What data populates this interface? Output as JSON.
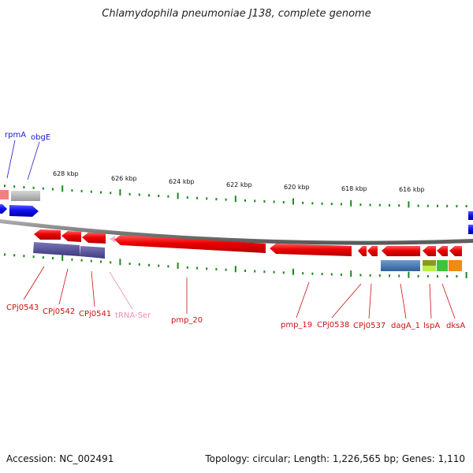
{
  "title": "Chlamydophila pneumoniae J138, complete genome",
  "footer": {
    "accession": "Accession: NC_002491",
    "summary": "Topology: circular; Length: 1,226,565 bp; Genes: 1,110"
  },
  "ticks": [
    "628 kbp",
    "626 kbp",
    "624 kbp",
    "622 kbp",
    "620 kbp",
    "618 kbp",
    "616 kbp"
  ],
  "genes_top": [
    {
      "name": "rpmA",
      "color": "#1a1acc"
    },
    {
      "name": "obgE",
      "color": "#1a1acc"
    }
  ],
  "genes_bottom": [
    {
      "name": "CPj0543",
      "color": "#cc1111"
    },
    {
      "name": "CPj0542",
      "color": "#cc1111"
    },
    {
      "name": "CPj0541",
      "color": "#cc1111"
    },
    {
      "name": "tRNA-Ser",
      "color": "#f08cb4"
    },
    {
      "name": "pmp_20",
      "color": "#cc1111"
    },
    {
      "name": "pmp_19",
      "color": "#cc1111"
    },
    {
      "name": "CPj0538",
      "color": "#cc1111"
    },
    {
      "name": "CPj0537",
      "color": "#cc1111"
    },
    {
      "name": "dagA_1",
      "color": "#cc1111"
    },
    {
      "name": "lspA",
      "color": "#cc1111"
    },
    {
      "name": "dksA",
      "color": "#cc1111"
    }
  ],
  "colors": {
    "forward": "#1010ee",
    "reverse": "#ee0000",
    "backbone": "#8a8a8a",
    "tick": "#1b8a1b"
  }
}
